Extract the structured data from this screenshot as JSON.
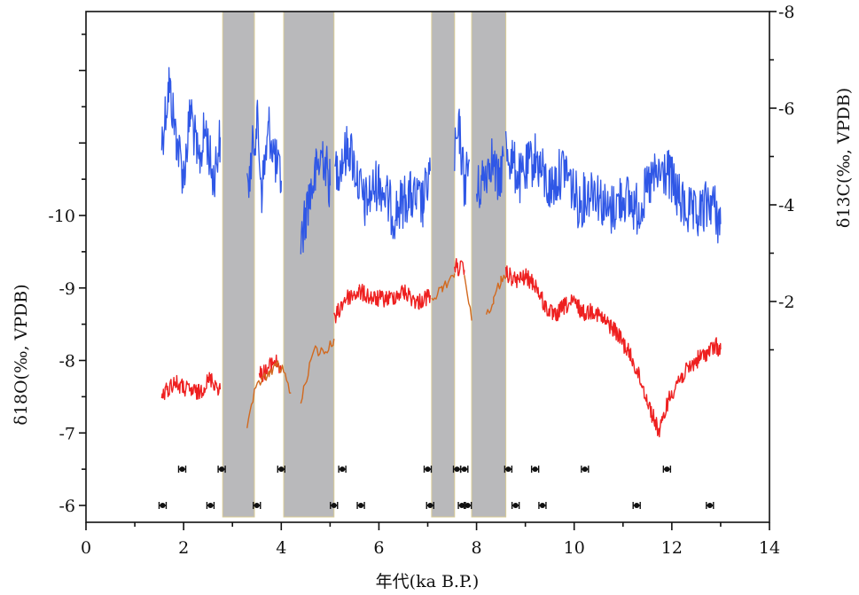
{
  "chart_data": {
    "type": "line",
    "xlabel": "年代(ka B.P.)",
    "ylabel_left": "δ18O(‰, VPDB)",
    "ylabel_right": "δ13C(‰, VPDB)",
    "x_range": [
      0,
      14
    ],
    "x_ticks": [
      "0",
      "2",
      "4",
      "6",
      "8",
      "10",
      "12",
      "14"
    ],
    "y_left_ticks": [
      "-6",
      "-7",
      "-8",
      "-9",
      "-10"
    ],
    "y_right_ticks": [
      "-2",
      "-4",
      "-6",
      "-8"
    ],
    "y_left_range": [
      -5.9,
      -12.8
    ],
    "y_right_range": [
      0.8,
      -8.0
    ],
    "colors": {
      "d13c": "#2f57e6",
      "d18o": "#ee2020",
      "d18o_interpolated": "#d2691e",
      "band_fill": "#b9b9bb",
      "band_edge": "#d9cc96",
      "dating": "#111111"
    },
    "shaded_intervals": [
      [
        2.8,
        3.45
      ],
      [
        4.05,
        5.08
      ],
      [
        7.08,
        7.55
      ],
      [
        7.9,
        8.6
      ]
    ],
    "series": [
      {
        "name": "",
        "axis": "right",
        "color": "#2f57e6",
        "segments": [
          {
            "x": [
              1.55,
              1.7,
              1.85,
              2.0,
              2.15,
              2.3,
              2.45,
              2.6,
              2.75
            ],
            "y": [
              -5.3,
              -6.5,
              -5.4,
              -4.6,
              -6.0,
              -4.8,
              -5.6,
              -4.5,
              -5.4
            ]
          },
          {
            "x": [
              3.3,
              3.4,
              3.5,
              3.6,
              3.75,
              3.9,
              4.0
            ],
            "y": [
              -4.2,
              -5.0,
              -5.8,
              -4.3,
              -5.6,
              -4.8,
              -4.5
            ]
          },
          {
            "x": [
              4.4,
              4.55,
              4.7,
              4.85,
              5.0
            ],
            "y": [
              -3.2,
              -4.1,
              -4.6,
              -5.1,
              -4.4
            ]
          },
          {
            "x": [
              5.1,
              5.4,
              5.7,
              6.0,
              6.3,
              6.6,
              6.9,
              7.05
            ],
            "y": [
              -4.7,
              -5.2,
              -4.0,
              -4.5,
              -3.8,
              -4.2,
              -4.0,
              -4.7
            ]
          },
          {
            "x": [
              7.55,
              7.65,
              7.75,
              7.85
            ],
            "y": [
              -5.0,
              -5.5,
              -4.4,
              -4.9
            ]
          },
          {
            "x": [
              8.0,
              8.15,
              8.3,
              8.45,
              8.55
            ],
            "y": [
              -4.2,
              -4.6,
              -5.0,
              -4.4,
              -5.0
            ]
          },
          {
            "x": [
              8.6,
              8.9,
              9.2,
              9.5,
              9.8,
              10.1,
              10.4,
              10.7,
              11.0,
              11.3,
              11.6,
              11.9,
              12.2,
              12.5,
              12.8,
              13.0
            ],
            "y": [
              -5.2,
              -4.5,
              -5.0,
              -4.3,
              -4.8,
              -4.0,
              -4.4,
              -3.8,
              -4.2,
              -3.9,
              -4.5,
              -4.7,
              -4.0,
              -3.7,
              -4.1,
              -3.6
            ]
          }
        ]
      },
      {
        "name": "",
        "axis": "left",
        "color": "#ee2020",
        "segments": [
          {
            "x": [
              1.55,
              1.8,
              2.05,
              2.3,
              2.55,
              2.75
            ],
            "y": [
              -7.5,
              -7.7,
              -7.6,
              -7.55,
              -7.75,
              -7.6
            ]
          },
          {
            "x": [
              3.55,
              3.7,
              3.85,
              4.0
            ],
            "y": [
              -7.8,
              -7.85,
              -8.0,
              -7.9
            ]
          },
          {
            "x": [
              5.08,
              5.3,
              5.6,
              5.9,
              6.2,
              6.5,
              6.8,
              7.05
            ],
            "y": [
              -8.55,
              -8.85,
              -8.95,
              -8.85,
              -8.85,
              -8.95,
              -8.8,
              -8.9
            ]
          },
          {
            "x": [
              7.55,
              7.75
            ],
            "y": [
              -9.3,
              -9.25
            ]
          },
          {
            "x": [
              8.6,
              8.8,
              9.0,
              9.2,
              9.4,
              9.6,
              9.8,
              10.0,
              10.2,
              10.4,
              10.6,
              10.8,
              11.0,
              11.2,
              11.4,
              11.6,
              11.75,
              11.9,
              12.1,
              12.3,
              12.5,
              12.7,
              12.9,
              13.0
            ],
            "y": [
              -9.2,
              -9.1,
              -9.15,
              -9.05,
              -8.75,
              -8.6,
              -8.75,
              -8.8,
              -8.65,
              -8.7,
              -8.55,
              -8.45,
              -8.25,
              -8.0,
              -7.65,
              -7.25,
              -7.0,
              -7.4,
              -7.7,
              -7.85,
              -8.0,
              -8.1,
              -8.2,
              -8.15
            ]
          }
        ]
      },
      {
        "name": "",
        "axis": "left",
        "color": "#d2691e",
        "segments": [
          {
            "x": [
              3.3,
              3.45,
              3.6,
              3.75,
              3.9,
              4.05,
              4.2
            ],
            "y": [
              -7.1,
              -7.55,
              -7.75,
              -7.8,
              -7.95,
              -7.85,
              -7.55
            ]
          },
          {
            "x": [
              4.4,
              4.55,
              4.7,
              4.85,
              5.0,
              5.08
            ],
            "y": [
              -7.4,
              -7.85,
              -8.15,
              -8.1,
              -8.2,
              -8.3
            ]
          },
          {
            "x": [
              7.08,
              7.3,
              7.55
            ],
            "y": [
              -8.85,
              -9.0,
              -9.2
            ]
          },
          {
            "x": [
              7.75,
              7.9
            ],
            "y": [
              -9.2,
              -8.55
            ]
          },
          {
            "x": [
              8.2,
              8.35,
              8.5,
              8.6
            ],
            "y": [
              -8.6,
              -8.85,
              -9.1,
              -9.15
            ]
          }
        ]
      }
    ],
    "dating_rows": [
      {
        "y": -6.5,
        "points": [
          1.97,
          2.78,
          4.0,
          5.25,
          7.0,
          7.6,
          7.75,
          8.65,
          9.2,
          10.22,
          11.9
        ]
      },
      {
        "y": -6.0,
        "points": [
          1.57,
          2.55,
          3.5,
          5.08,
          5.63,
          7.05,
          7.7,
          7.82,
          8.8,
          9.35,
          11.28,
          12.78
        ]
      }
    ]
  }
}
